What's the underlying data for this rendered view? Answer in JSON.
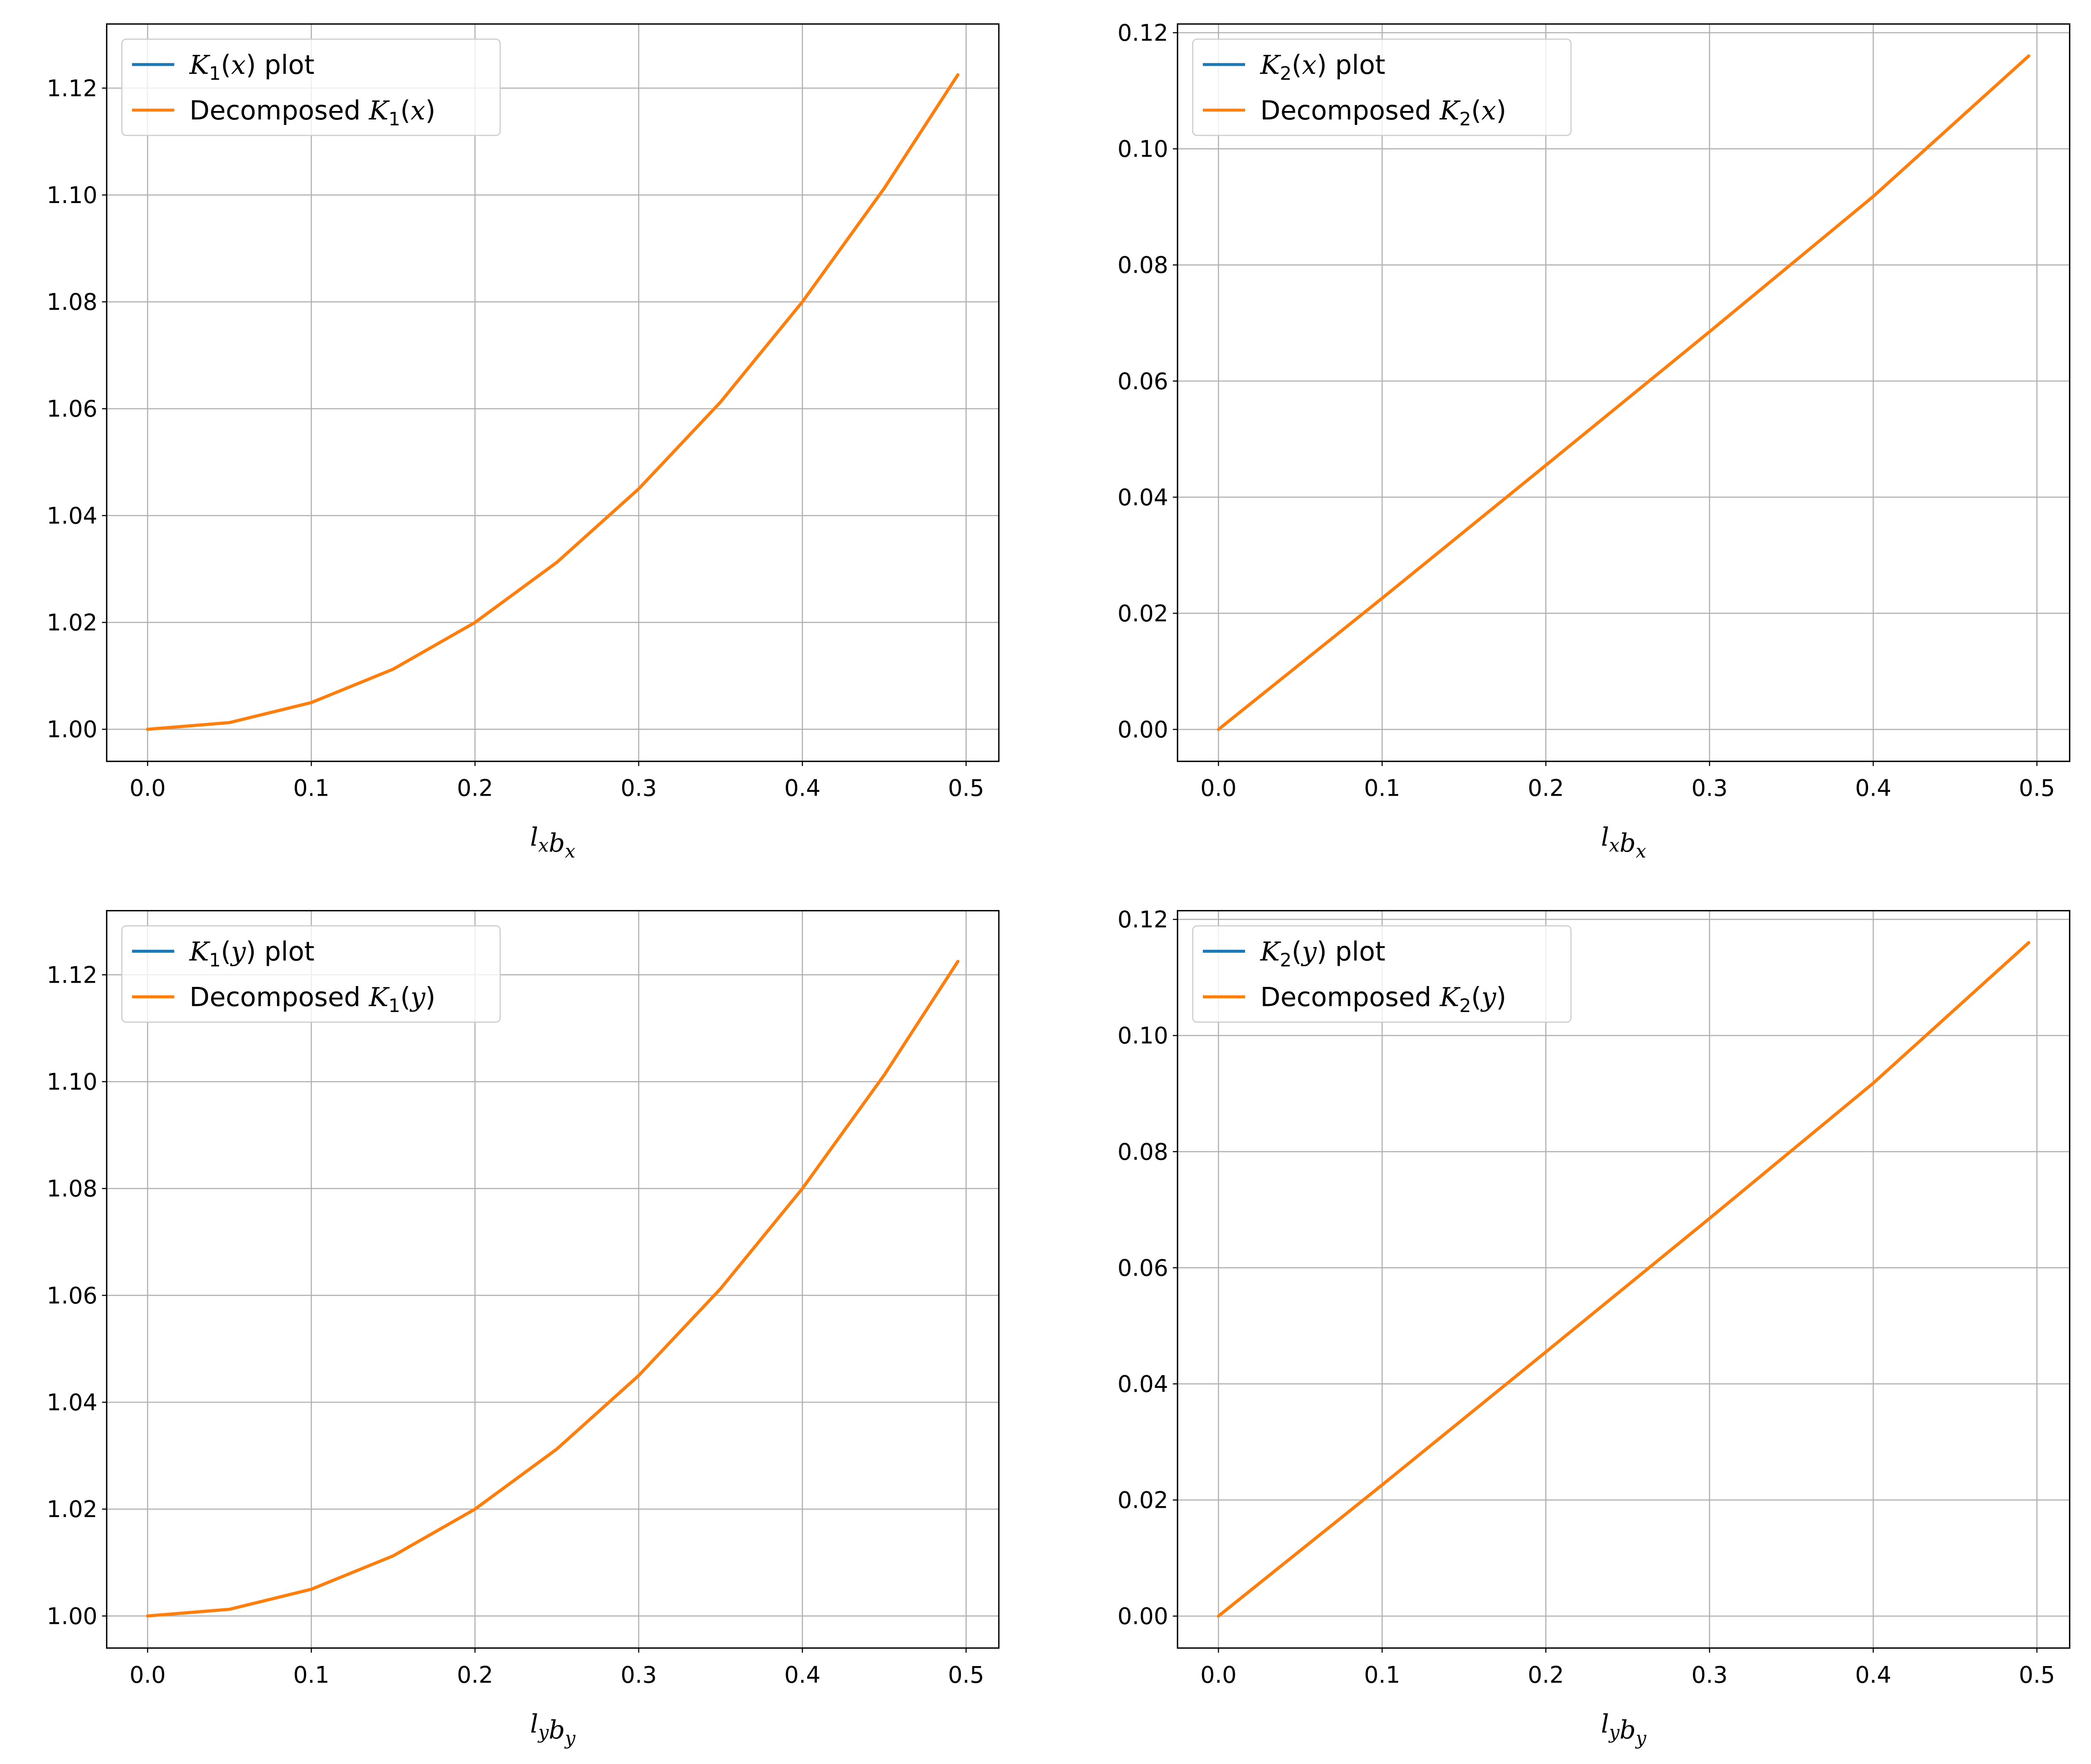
{
  "chart_data": [
    {
      "type": "line",
      "xlabel": "l_x b_x",
      "xlim": [
        -0.025,
        0.52
      ],
      "ylim": [
        0.994,
        1.132
      ],
      "xticks": [
        "0.0",
        "0.1",
        "0.2",
        "0.3",
        "0.4",
        "0.5"
      ],
      "yticks": [
        "1.00",
        "1.02",
        "1.04",
        "1.06",
        "1.08",
        "1.10",
        "1.12"
      ],
      "grid": true,
      "legend_position": "top-left",
      "x": [
        0.0,
        0.05,
        0.1,
        0.15,
        0.2,
        0.25,
        0.3,
        0.35,
        0.4,
        0.45,
        0.495
      ],
      "series": [
        {
          "name": "K1(x) plot",
          "color": "#1f77b4",
          "values": [
            1.0,
            1.00125,
            1.005,
            1.01125,
            1.02,
            1.03125,
            1.045,
            1.06125,
            1.08,
            1.10125,
            1.1225
          ]
        },
        {
          "name": "Decomposed K1(x)",
          "color": "#ff7f0e",
          "values": [
            1.0,
            1.00125,
            1.005,
            1.01125,
            1.02,
            1.03125,
            1.045,
            1.06125,
            1.08,
            1.10125,
            1.1225
          ]
        }
      ]
    },
    {
      "type": "line",
      "xlabel": "l_x b_x",
      "xlim": [
        -0.025,
        0.52
      ],
      "ylim": [
        -0.0055,
        0.1215
      ],
      "xticks": [
        "0.0",
        "0.1",
        "0.2",
        "0.3",
        "0.4",
        "0.5"
      ],
      "yticks": [
        "0.00",
        "0.02",
        "0.04",
        "0.06",
        "0.08",
        "0.10",
        "0.12"
      ],
      "grid": true,
      "legend_position": "top-left",
      "x": [
        0.0,
        0.1,
        0.2,
        0.3,
        0.4,
        0.495
      ],
      "series": [
        {
          "name": "K2(x) plot",
          "color": "#1f77b4",
          "values": [
            0.0,
            0.0226,
            0.0455,
            0.0685,
            0.0918,
            0.116
          ]
        },
        {
          "name": "Decomposed K2(x)",
          "color": "#ff7f0e",
          "values": [
            0.0,
            0.0226,
            0.0455,
            0.0685,
            0.0918,
            0.116
          ]
        }
      ]
    },
    {
      "type": "line",
      "xlabel": "l_y b_y",
      "xlim": [
        -0.025,
        0.52
      ],
      "ylim": [
        0.994,
        1.132
      ],
      "xticks": [
        "0.0",
        "0.1",
        "0.2",
        "0.3",
        "0.4",
        "0.5"
      ],
      "yticks": [
        "1.00",
        "1.02",
        "1.04",
        "1.06",
        "1.08",
        "1.10",
        "1.12"
      ],
      "grid": true,
      "legend_position": "top-left",
      "x": [
        0.0,
        0.05,
        0.1,
        0.15,
        0.2,
        0.25,
        0.3,
        0.35,
        0.4,
        0.45,
        0.495
      ],
      "series": [
        {
          "name": "K1(y) plot",
          "color": "#1f77b4",
          "values": [
            1.0,
            1.00125,
            1.005,
            1.01125,
            1.02,
            1.03125,
            1.045,
            1.06125,
            1.08,
            1.10125,
            1.1225
          ]
        },
        {
          "name": "Decomposed K1(y)",
          "color": "#ff7f0e",
          "values": [
            1.0,
            1.00125,
            1.005,
            1.01125,
            1.02,
            1.03125,
            1.045,
            1.06125,
            1.08,
            1.10125,
            1.1225
          ]
        }
      ]
    },
    {
      "type": "line",
      "xlabel": "l_y b_y",
      "xlim": [
        -0.025,
        0.52
      ],
      "ylim": [
        -0.0055,
        0.1215
      ],
      "xticks": [
        "0.0",
        "0.1",
        "0.2",
        "0.3",
        "0.4",
        "0.5"
      ],
      "yticks": [
        "0.00",
        "0.02",
        "0.04",
        "0.06",
        "0.08",
        "0.10",
        "0.12"
      ],
      "grid": true,
      "legend_position": "top-left",
      "x": [
        0.0,
        0.1,
        0.2,
        0.3,
        0.4,
        0.495
      ],
      "series": [
        {
          "name": "K2(y) plot",
          "color": "#1f77b4",
          "values": [
            0.0,
            0.0226,
            0.0455,
            0.0685,
            0.0918,
            0.116
          ]
        },
        {
          "name": "Decomposed K2(y)",
          "color": "#ff7f0e",
          "values": [
            0.0,
            0.0226,
            0.0455,
            0.0685,
            0.0918,
            0.116
          ]
        }
      ]
    }
  ]
}
